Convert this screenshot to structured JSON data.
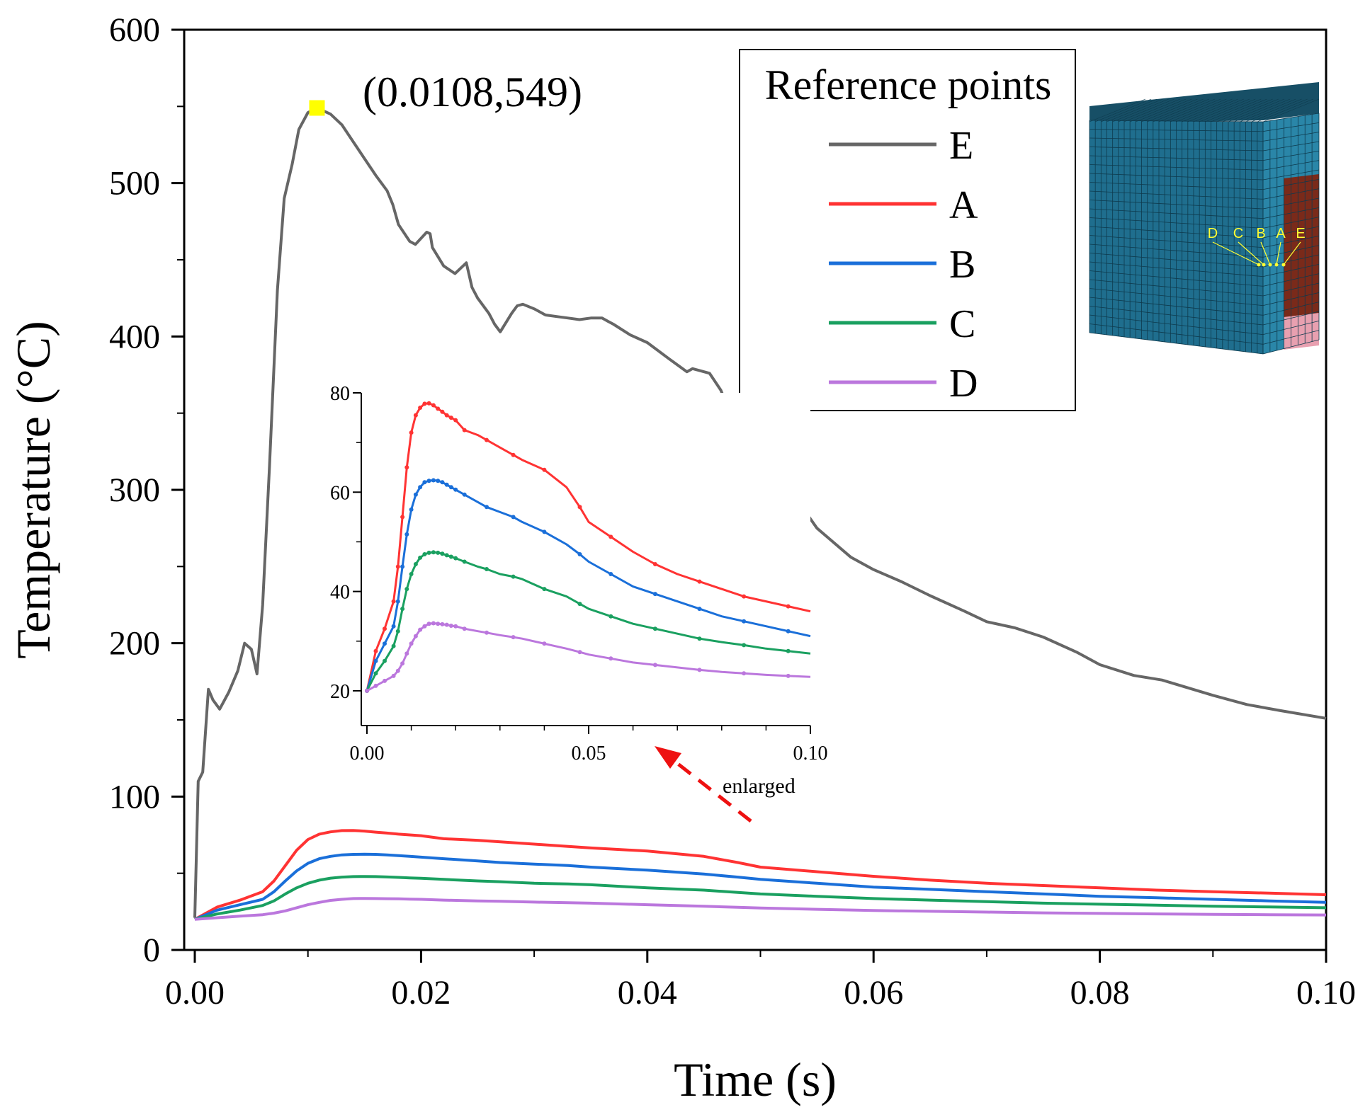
{
  "chart_data": {
    "type": "line",
    "xlabel": "Time (s)",
    "ylabel": "Temperature (°C)",
    "xlim": [
      0,
      0.1
    ],
    "ylim": [
      0,
      600
    ],
    "x_ticks": [
      "0.00",
      "0.02",
      "0.04",
      "0.06",
      "0.08",
      "0.10"
    ],
    "y_ticks": [
      "0",
      "100",
      "200",
      "300",
      "400",
      "500",
      "600"
    ],
    "grid": false,
    "legend": {
      "title": "Reference points",
      "position": "top-right"
    },
    "annotation": {
      "text": "(0.0108,549)",
      "x": 0.0108,
      "y": 549,
      "marker_color": "#ffff00"
    },
    "series": [
      {
        "name": "E",
        "color": "#666666",
        "x": [
          0.0,
          0.0003,
          0.0007,
          0.0012,
          0.0016,
          0.0022,
          0.003,
          0.0038,
          0.0044,
          0.005,
          0.0055,
          0.006,
          0.0066,
          0.0073,
          0.0079,
          0.0086,
          0.0092,
          0.01,
          0.0108,
          0.012,
          0.013,
          0.014,
          0.015,
          0.016,
          0.017,
          0.0175,
          0.018,
          0.019,
          0.0195,
          0.0205,
          0.0208,
          0.021,
          0.022,
          0.023,
          0.024,
          0.0245,
          0.025,
          0.026,
          0.0265,
          0.027,
          0.028,
          0.0285,
          0.029,
          0.03,
          0.031,
          0.032,
          0.033,
          0.034,
          0.035,
          0.036,
          0.0365,
          0.037,
          0.0385,
          0.04,
          0.042,
          0.0435,
          0.044,
          0.0455,
          0.0465,
          0.048,
          0.05,
          0.0507,
          0.052,
          0.053,
          0.055,
          0.058,
          0.06,
          0.0625,
          0.065,
          0.068,
          0.07,
          0.0725,
          0.075,
          0.078,
          0.08,
          0.083,
          0.0855,
          0.09,
          0.093,
          0.096,
          0.1
        ],
        "y": [
          21,
          110,
          116,
          170,
          163,
          157,
          168,
          182,
          200,
          196,
          180,
          225,
          315,
          430,
          490,
          512,
          535,
          546,
          549,
          545,
          538,
          527,
          516,
          505,
          495,
          486,
          473,
          462,
          460,
          468,
          467,
          458,
          446,
          441,
          448,
          432,
          425,
          415,
          408,
          403,
          415,
          420,
          421,
          418,
          414,
          413,
          412,
          411,
          412,
          412,
          410,
          408,
          401,
          396,
          385,
          377,
          379,
          376,
          365,
          338,
          305,
          301,
          301,
          296,
          275,
          256,
          248,
          240,
          231,
          221,
          214,
          210,
          204,
          194,
          186,
          179,
          176,
          166,
          160,
          156,
          151
        ]
      },
      {
        "name": "A",
        "color": "#ff3333",
        "x": [
          0.0,
          0.002,
          0.004,
          0.006,
          0.007,
          0.008,
          0.009,
          0.01,
          0.011,
          0.012,
          0.013,
          0.014,
          0.015,
          0.016,
          0.017,
          0.018,
          0.019,
          0.02,
          0.022,
          0.025,
          0.027,
          0.03,
          0.033,
          0.035,
          0.04,
          0.045,
          0.048,
          0.05,
          0.055,
          0.06,
          0.065,
          0.07,
          0.075,
          0.08,
          0.085,
          0.09,
          0.095,
          0.1
        ],
        "y": [
          20.0,
          28.0,
          32.5,
          38.0,
          45.0,
          55.0,
          65.0,
          72.0,
          75.5,
          77.0,
          77.8,
          77.9,
          77.5,
          76.8,
          76.2,
          75.5,
          75.0,
          74.5,
          72.5,
          71.5,
          70.5,
          69.0,
          67.5,
          66.5,
          64.5,
          61.0,
          57.0,
          54.0,
          51.0,
          48.0,
          45.5,
          43.5,
          42.0,
          40.5,
          39.0,
          38.0,
          37.0,
          36.0
        ]
      },
      {
        "name": "B",
        "color": "#1a6fd9",
        "x": [
          0.0,
          0.002,
          0.004,
          0.006,
          0.007,
          0.008,
          0.009,
          0.01,
          0.011,
          0.012,
          0.013,
          0.014,
          0.015,
          0.016,
          0.017,
          0.018,
          0.019,
          0.02,
          0.022,
          0.025,
          0.027,
          0.03,
          0.033,
          0.035,
          0.04,
          0.045,
          0.048,
          0.05,
          0.055,
          0.06,
          0.065,
          0.07,
          0.075,
          0.08,
          0.085,
          0.09,
          0.095,
          0.1
        ],
        "y": [
          20.0,
          26.0,
          29.5,
          33.0,
          38.0,
          45.0,
          51.5,
          56.5,
          59.5,
          61.0,
          62.0,
          62.3,
          62.4,
          62.3,
          62.0,
          61.5,
          61.0,
          60.5,
          59.5,
          58.0,
          57.0,
          56.0,
          55.0,
          54.0,
          52.0,
          49.5,
          47.5,
          46.0,
          43.5,
          41.0,
          39.5,
          38.0,
          36.5,
          35.0,
          34.0,
          33.0,
          32.0,
          31.0
        ]
      },
      {
        "name": "C",
        "color": "#1aa060",
        "x": [
          0.0,
          0.002,
          0.004,
          0.006,
          0.007,
          0.008,
          0.009,
          0.01,
          0.011,
          0.012,
          0.013,
          0.014,
          0.015,
          0.016,
          0.017,
          0.018,
          0.019,
          0.02,
          0.022,
          0.025,
          0.027,
          0.03,
          0.033,
          0.035,
          0.04,
          0.045,
          0.048,
          0.05,
          0.055,
          0.06,
          0.065,
          0.07,
          0.075,
          0.08,
          0.085,
          0.09,
          0.095,
          0.1
        ],
        "y": [
          20.0,
          23.5,
          26.0,
          29.0,
          32.0,
          36.5,
          40.5,
          43.5,
          45.5,
          46.8,
          47.5,
          47.8,
          47.9,
          47.8,
          47.6,
          47.3,
          47.0,
          46.7,
          46.0,
          45.0,
          44.5,
          43.5,
          43.0,
          42.5,
          40.5,
          39.0,
          37.5,
          36.5,
          35.0,
          33.5,
          32.5,
          31.5,
          30.5,
          29.8,
          29.2,
          28.5,
          28.0,
          27.5
        ]
      },
      {
        "name": "D",
        "color": "#bb77dd",
        "x": [
          0.0,
          0.002,
          0.004,
          0.006,
          0.007,
          0.008,
          0.009,
          0.01,
          0.011,
          0.012,
          0.013,
          0.014,
          0.015,
          0.016,
          0.017,
          0.018,
          0.019,
          0.02,
          0.022,
          0.025,
          0.027,
          0.03,
          0.033,
          0.035,
          0.04,
          0.045,
          0.048,
          0.05,
          0.055,
          0.06,
          0.065,
          0.07,
          0.075,
          0.08,
          0.085,
          0.09,
          0.095,
          0.1
        ],
        "y": [
          20.0,
          21.0,
          22.0,
          23.0,
          24.0,
          25.5,
          27.5,
          29.5,
          31.0,
          32.3,
          33.0,
          33.5,
          33.6,
          33.5,
          33.4,
          33.3,
          33.1,
          33.0,
          32.5,
          32.0,
          31.7,
          31.2,
          30.8,
          30.5,
          29.5,
          28.5,
          27.8,
          27.3,
          26.5,
          25.7,
          25.2,
          24.7,
          24.2,
          23.8,
          23.5,
          23.2,
          23.0,
          22.8
        ]
      }
    ],
    "inset": {
      "xlim": [
        0,
        0.1
      ],
      "ylim": [
        13,
        80
      ],
      "x_ticks": [
        "0.00",
        "0.05",
        "0.10"
      ],
      "y_ticks": [
        "20",
        "40",
        "60",
        "80"
      ],
      "series_shown": [
        "A",
        "B",
        "C",
        "D"
      ],
      "arrow_label": "enlarged",
      "arrow_color": "#ee1111"
    }
  },
  "model_image": {
    "point_labels": [
      "D",
      "C",
      "B",
      "A",
      "E"
    ],
    "colors": {
      "block": "#1f6e8e",
      "block_top": "#174f66",
      "hot_zone": "#7a2a1a",
      "pink_zone": "#e8a0b0",
      "label": "#ffff33"
    }
  }
}
